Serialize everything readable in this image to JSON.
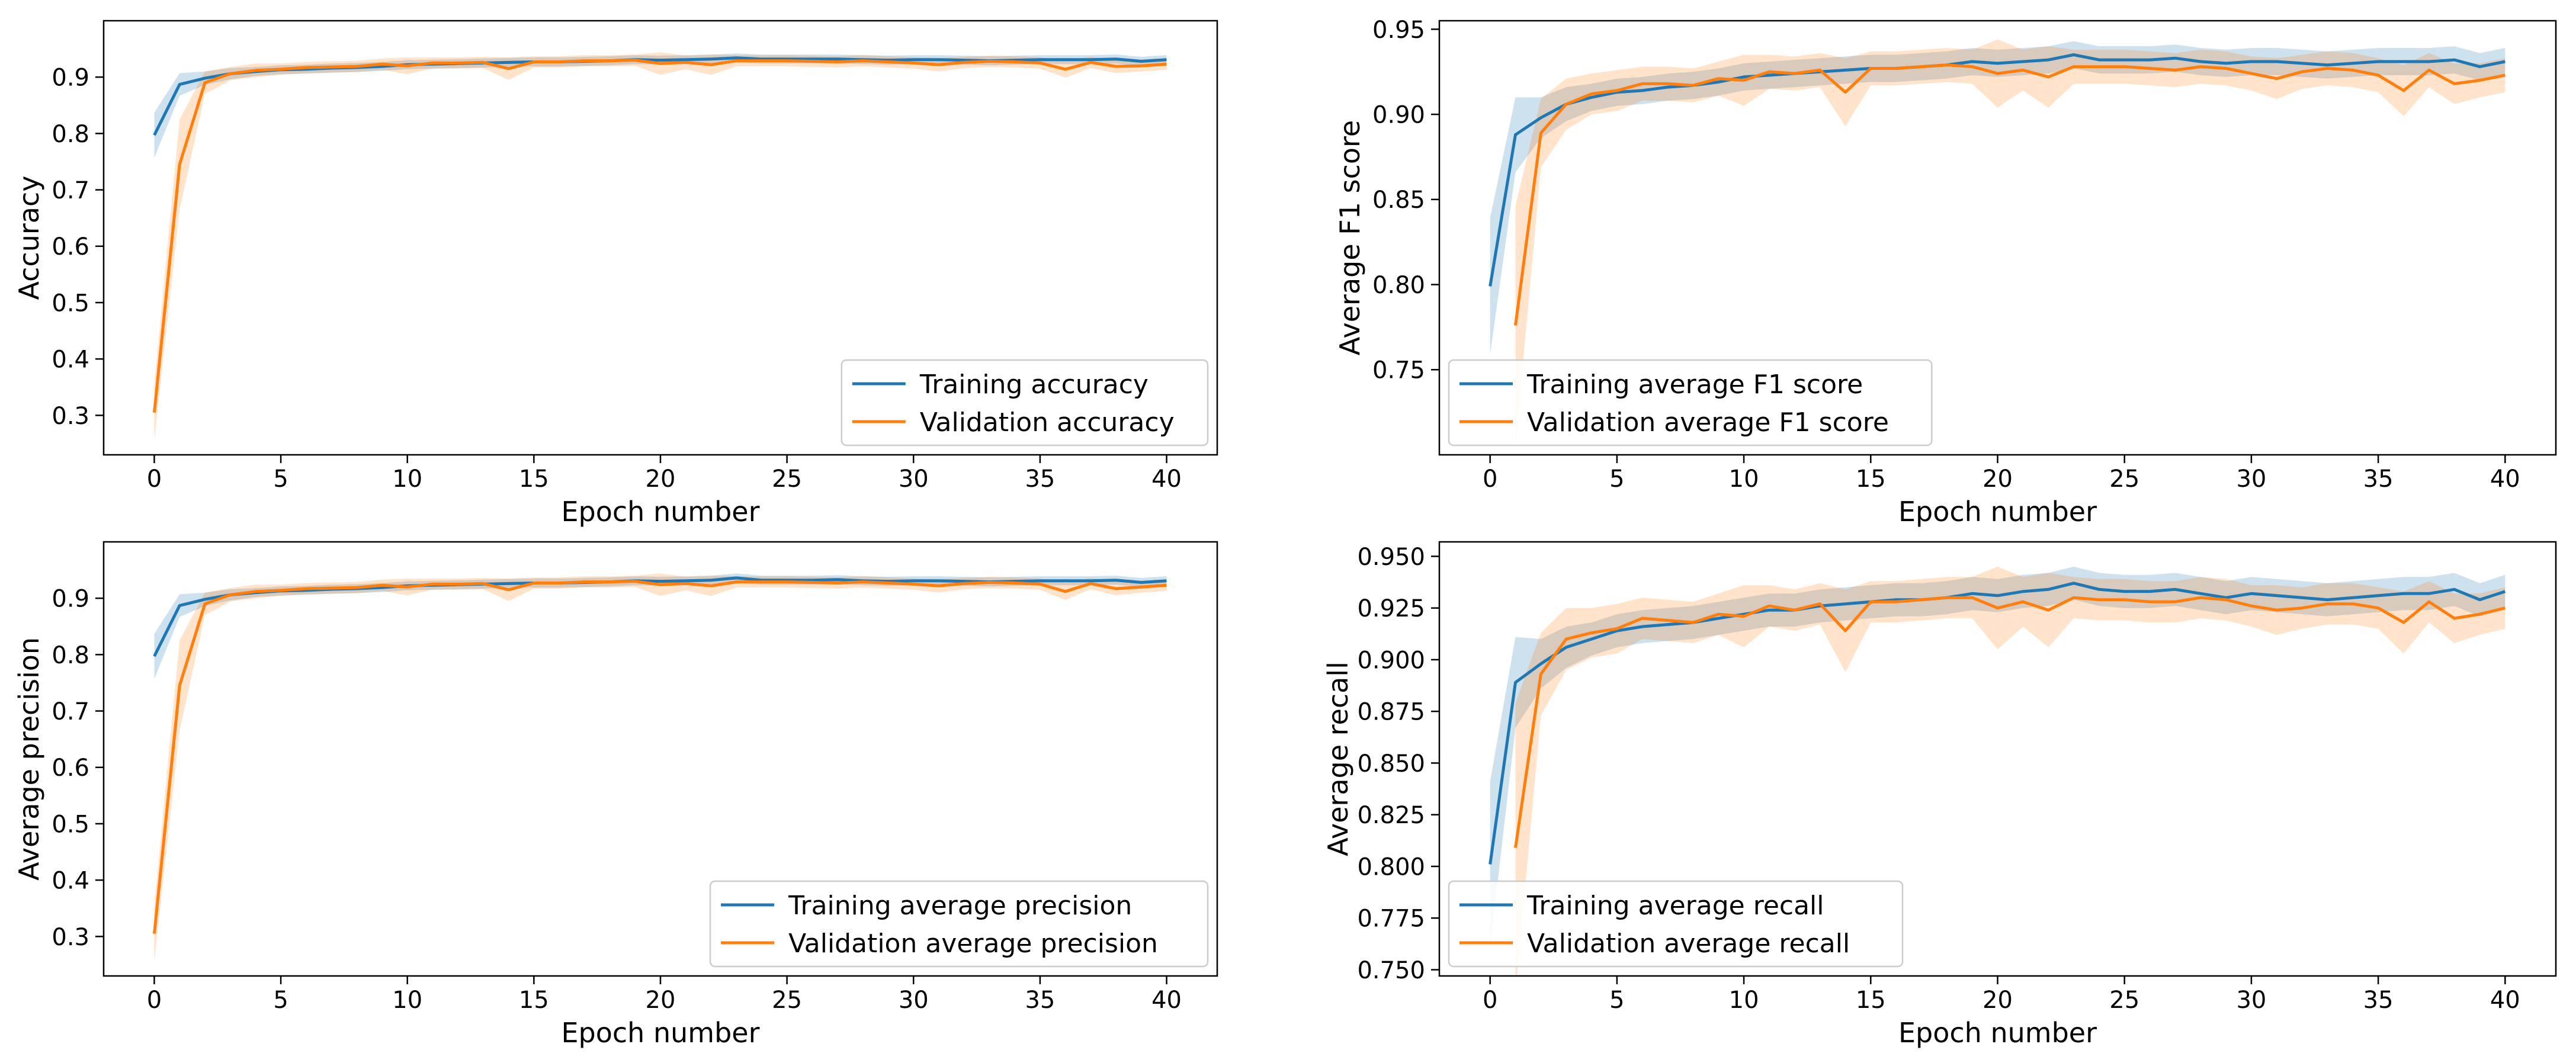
{
  "colors": {
    "training": "#1f77b4",
    "validation": "#ff7f0e"
  },
  "chart_data": [
    {
      "type": "line",
      "ylabel": "Accuracy",
      "xlabel": "Epoch number",
      "xlim": [
        -2,
        42
      ],
      "ylim": [
        0.23,
        1.0
      ],
      "xticks": [
        0,
        5,
        10,
        15,
        20,
        25,
        30,
        35,
        40
      ],
      "yticks": [
        0.3,
        0.4,
        0.5,
        0.6,
        0.7,
        0.8,
        0.9
      ],
      "tick_decimals": 1,
      "legend_position": "lower-right",
      "series": [
        {
          "name": "Training accuracy",
          "color_key": "training",
          "x_start": 0,
          "values": [
            0.797,
            0.887,
            0.898,
            0.906,
            0.91,
            0.913,
            0.914,
            0.916,
            0.917,
            0.919,
            0.922,
            0.923,
            0.924,
            0.925,
            0.926,
            0.927,
            0.927,
            0.928,
            0.929,
            0.931,
            0.93,
            0.931,
            0.932,
            0.934,
            0.932,
            0.932,
            0.932,
            0.932,
            0.931,
            0.93,
            0.931,
            0.931,
            0.93,
            0.929,
            0.93,
            0.931,
            0.931,
            0.931,
            0.932,
            0.928,
            0.931
          ],
          "band": [
            0.04,
            0.02,
            0.012,
            0.01,
            0.008,
            0.008,
            0.008,
            0.008,
            0.008,
            0.008,
            0.008,
            0.008,
            0.008,
            0.008,
            0.008,
            0.008,
            0.008,
            0.008,
            0.008,
            0.008,
            0.008,
            0.008,
            0.008,
            0.008,
            0.008,
            0.008,
            0.008,
            0.008,
            0.008,
            0.008,
            0.008,
            0.008,
            0.008,
            0.008,
            0.008,
            0.008,
            0.008,
            0.008,
            0.008,
            0.008,
            0.008
          ]
        },
        {
          "name": "Validation accuracy",
          "color_key": "validation",
          "x_start": 0,
          "values": [
            0.305,
            0.745,
            0.89,
            0.906,
            0.912,
            0.914,
            0.917,
            0.918,
            0.919,
            0.923,
            0.92,
            0.925,
            0.925,
            0.926,
            0.915,
            0.927,
            0.927,
            0.929,
            0.929,
            0.93,
            0.924,
            0.926,
            0.922,
            0.929,
            0.929,
            0.929,
            0.928,
            0.927,
            0.929,
            0.927,
            0.925,
            0.922,
            0.926,
            0.928,
            0.927,
            0.925,
            0.914,
            0.926,
            0.919,
            0.92,
            0.923
          ],
          "band": [
            0.05,
            0.08,
            0.02,
            0.012,
            0.012,
            0.01,
            0.01,
            0.01,
            0.01,
            0.01,
            0.015,
            0.01,
            0.01,
            0.01,
            0.02,
            0.01,
            0.01,
            0.01,
            0.01,
            0.01,
            0.02,
            0.012,
            0.018,
            0.01,
            0.01,
            0.01,
            0.01,
            0.01,
            0.01,
            0.01,
            0.01,
            0.012,
            0.01,
            0.01,
            0.01,
            0.01,
            0.015,
            0.01,
            0.012,
            0.01,
            0.01
          ]
        }
      ]
    },
    {
      "type": "line",
      "ylabel": "Average F1 score",
      "xlabel": "Epoch number",
      "xlim": [
        -2,
        42
      ],
      "ylim": [
        0.7,
        0.955
      ],
      "xticks": [
        0,
        5,
        10,
        15,
        20,
        25,
        30,
        35,
        40
      ],
      "yticks": [
        0.75,
        0.8,
        0.85,
        0.9,
        0.95
      ],
      "tick_decimals": 2,
      "legend_position": "lower-left",
      "series": [
        {
          "name": "Training average F1 score",
          "color_key": "training",
          "x_start": 0,
          "values": [
            0.799,
            0.888,
            0.898,
            0.906,
            0.91,
            0.913,
            0.914,
            0.916,
            0.917,
            0.919,
            0.922,
            0.923,
            0.924,
            0.925,
            0.926,
            0.927,
            0.927,
            0.928,
            0.929,
            0.931,
            0.93,
            0.931,
            0.932,
            0.935,
            0.932,
            0.932,
            0.932,
            0.933,
            0.931,
            0.93,
            0.931,
            0.931,
            0.93,
            0.929,
            0.93,
            0.931,
            0.931,
            0.931,
            0.932,
            0.928,
            0.931
          ],
          "band": [
            0.04,
            0.022,
            0.012,
            0.01,
            0.008,
            0.008,
            0.008,
            0.008,
            0.008,
            0.008,
            0.008,
            0.008,
            0.008,
            0.008,
            0.008,
            0.008,
            0.008,
            0.008,
            0.008,
            0.008,
            0.008,
            0.008,
            0.008,
            0.008,
            0.008,
            0.008,
            0.008,
            0.008,
            0.008,
            0.008,
            0.008,
            0.008,
            0.008,
            0.008,
            0.008,
            0.008,
            0.008,
            0.008,
            0.008,
            0.008,
            0.008
          ]
        },
        {
          "name": "Validation average F1 score",
          "color_key": "validation",
          "x_start": 1,
          "values": [
            0.776,
            0.889,
            0.906,
            0.912,
            0.914,
            0.918,
            0.918,
            0.917,
            0.921,
            0.92,
            0.925,
            0.924,
            0.926,
            0.913,
            0.927,
            0.927,
            0.928,
            0.929,
            0.928,
            0.924,
            0.926,
            0.922,
            0.928,
            0.928,
            0.928,
            0.927,
            0.926,
            0.928,
            0.927,
            0.924,
            0.921,
            0.925,
            0.927,
            0.926,
            0.923,
            0.914,
            0.926,
            0.918,
            0.92,
            0.923
          ],
          "band": [
            0.07,
            0.02,
            0.015,
            0.012,
            0.012,
            0.01,
            0.01,
            0.01,
            0.01,
            0.015,
            0.01,
            0.01,
            0.01,
            0.02,
            0.01,
            0.01,
            0.01,
            0.01,
            0.01,
            0.02,
            0.012,
            0.018,
            0.01,
            0.01,
            0.01,
            0.01,
            0.01,
            0.01,
            0.01,
            0.01,
            0.012,
            0.01,
            0.01,
            0.01,
            0.01,
            0.015,
            0.01,
            0.012,
            0.01,
            0.01
          ]
        }
      ]
    },
    {
      "type": "line",
      "ylabel": "Average precision",
      "xlabel": "Epoch number",
      "xlim": [
        -2,
        42
      ],
      "ylim": [
        0.23,
        1.0
      ],
      "xticks": [
        0,
        5,
        10,
        15,
        20,
        25,
        30,
        35,
        40
      ],
      "yticks": [
        0.3,
        0.4,
        0.5,
        0.6,
        0.7,
        0.8,
        0.9
      ],
      "tick_decimals": 1,
      "legend_position": "lower-right",
      "series": [
        {
          "name": "Training average precision",
          "color_key": "training",
          "x_start": 0,
          "values": [
            0.797,
            0.887,
            0.898,
            0.906,
            0.91,
            0.913,
            0.914,
            0.916,
            0.917,
            0.919,
            0.922,
            0.923,
            0.924,
            0.925,
            0.926,
            0.927,
            0.927,
            0.928,
            0.929,
            0.931,
            0.93,
            0.931,
            0.932,
            0.936,
            0.932,
            0.932,
            0.932,
            0.933,
            0.931,
            0.93,
            0.931,
            0.931,
            0.93,
            0.929,
            0.93,
            0.931,
            0.931,
            0.931,
            0.932,
            0.928,
            0.931
          ],
          "band": [
            0.04,
            0.02,
            0.012,
            0.01,
            0.008,
            0.008,
            0.008,
            0.008,
            0.008,
            0.008,
            0.008,
            0.008,
            0.008,
            0.008,
            0.008,
            0.008,
            0.008,
            0.008,
            0.008,
            0.008,
            0.008,
            0.008,
            0.008,
            0.008,
            0.008,
            0.008,
            0.008,
            0.008,
            0.008,
            0.008,
            0.008,
            0.008,
            0.008,
            0.008,
            0.008,
            0.008,
            0.008,
            0.008,
            0.008,
            0.008,
            0.008
          ]
        },
        {
          "name": "Validation average precision",
          "color_key": "validation",
          "x_start": 0,
          "values": [
            0.305,
            0.745,
            0.89,
            0.906,
            0.912,
            0.914,
            0.917,
            0.918,
            0.919,
            0.923,
            0.92,
            0.925,
            0.925,
            0.926,
            0.915,
            0.927,
            0.927,
            0.929,
            0.929,
            0.93,
            0.924,
            0.926,
            0.922,
            0.929,
            0.929,
            0.929,
            0.928,
            0.927,
            0.929,
            0.927,
            0.925,
            0.922,
            0.926,
            0.928,
            0.927,
            0.925,
            0.912,
            0.926,
            0.917,
            0.92,
            0.923
          ],
          "band": [
            0.05,
            0.08,
            0.02,
            0.012,
            0.012,
            0.01,
            0.01,
            0.01,
            0.01,
            0.01,
            0.015,
            0.01,
            0.01,
            0.01,
            0.02,
            0.01,
            0.01,
            0.01,
            0.01,
            0.01,
            0.02,
            0.012,
            0.018,
            0.01,
            0.01,
            0.01,
            0.01,
            0.01,
            0.01,
            0.01,
            0.01,
            0.012,
            0.01,
            0.01,
            0.01,
            0.01,
            0.015,
            0.01,
            0.012,
            0.01,
            0.01
          ]
        }
      ]
    },
    {
      "type": "line",
      "ylabel": "Average recall",
      "xlabel": "Epoch number",
      "xlim": [
        -2,
        42
      ],
      "ylim": [
        0.747,
        0.957
      ],
      "xticks": [
        0,
        5,
        10,
        15,
        20,
        25,
        30,
        35,
        40
      ],
      "yticks": [
        0.75,
        0.775,
        0.8,
        0.825,
        0.85,
        0.875,
        0.9,
        0.925,
        0.95
      ],
      "tick_decimals": 3,
      "legend_position": "lower-left",
      "series": [
        {
          "name": "Training average recall",
          "color_key": "training",
          "x_start": 0,
          "values": [
            0.801,
            0.889,
            0.898,
            0.906,
            0.91,
            0.914,
            0.916,
            0.917,
            0.918,
            0.92,
            0.922,
            0.924,
            0.924,
            0.926,
            0.927,
            0.928,
            0.929,
            0.929,
            0.93,
            0.932,
            0.931,
            0.933,
            0.934,
            0.937,
            0.934,
            0.933,
            0.933,
            0.934,
            0.932,
            0.93,
            0.932,
            0.931,
            0.93,
            0.929,
            0.93,
            0.931,
            0.932,
            0.932,
            0.934,
            0.929,
            0.933
          ],
          "band": [
            0.04,
            0.022,
            0.012,
            0.01,
            0.008,
            0.008,
            0.008,
            0.008,
            0.008,
            0.008,
            0.008,
            0.008,
            0.008,
            0.008,
            0.008,
            0.008,
            0.008,
            0.008,
            0.008,
            0.008,
            0.008,
            0.008,
            0.008,
            0.008,
            0.008,
            0.008,
            0.008,
            0.008,
            0.008,
            0.008,
            0.008,
            0.008,
            0.008,
            0.008,
            0.008,
            0.008,
            0.008,
            0.008,
            0.008,
            0.008,
            0.008
          ]
        },
        {
          "name": "Validation average recall",
          "color_key": "validation",
          "x_start": 1,
          "values": [
            0.809,
            0.893,
            0.91,
            0.913,
            0.915,
            0.92,
            0.919,
            0.918,
            0.922,
            0.921,
            0.926,
            0.924,
            0.927,
            0.914,
            0.928,
            0.928,
            0.929,
            0.93,
            0.93,
            0.925,
            0.928,
            0.924,
            0.93,
            0.929,
            0.929,
            0.928,
            0.928,
            0.93,
            0.929,
            0.926,
            0.924,
            0.925,
            0.927,
            0.927,
            0.925,
            0.918,
            0.928,
            0.92,
            0.922,
            0.925
          ],
          "band": [
            0.07,
            0.02,
            0.015,
            0.012,
            0.012,
            0.01,
            0.01,
            0.01,
            0.01,
            0.015,
            0.01,
            0.01,
            0.01,
            0.02,
            0.01,
            0.01,
            0.01,
            0.01,
            0.01,
            0.02,
            0.012,
            0.018,
            0.01,
            0.01,
            0.01,
            0.01,
            0.01,
            0.01,
            0.01,
            0.01,
            0.012,
            0.01,
            0.01,
            0.01,
            0.01,
            0.015,
            0.01,
            0.012,
            0.01,
            0.01
          ]
        }
      ]
    }
  ]
}
